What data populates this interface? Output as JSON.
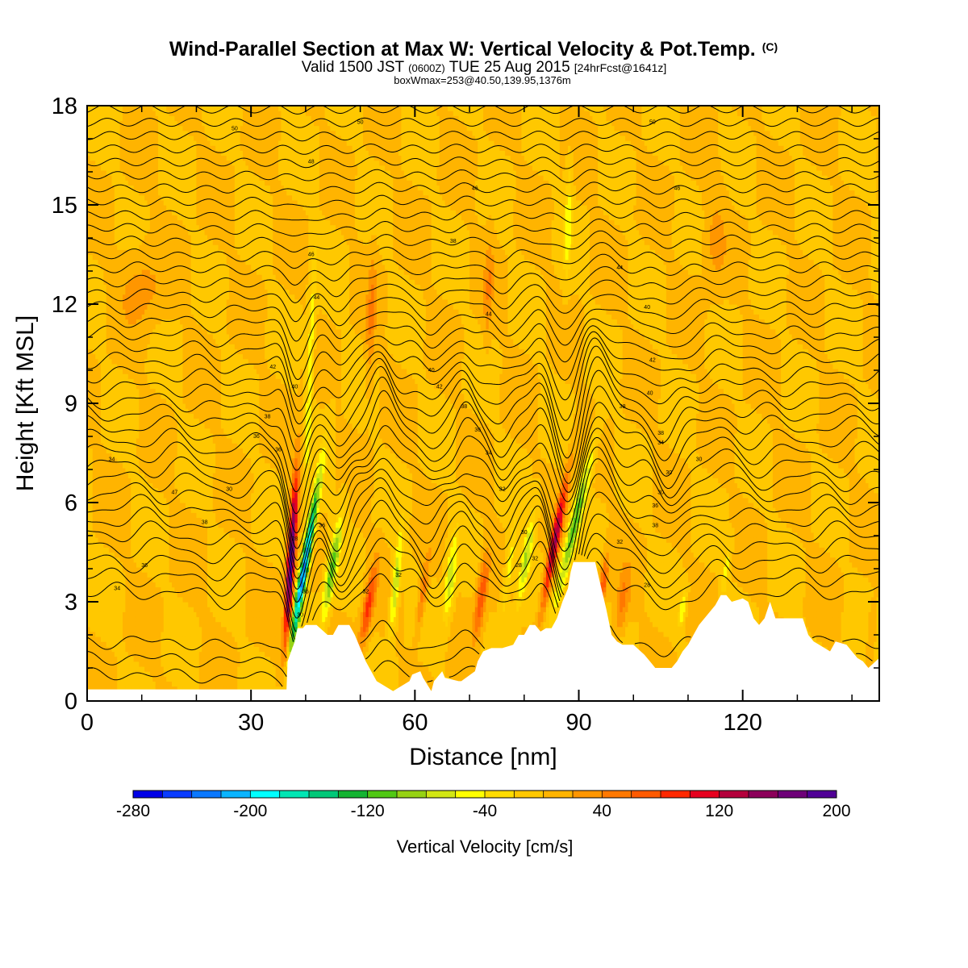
{
  "chart_data": {
    "type": "heatmap",
    "title": "Wind-Parallel Section at Max W: Vertical Velocity & Pot.Temp.",
    "title_mark": "(C)",
    "subtitle": {
      "part1": "Valid 1500 JST",
      "part2": "(0600Z)",
      "part3": "TUE 25 Aug 2015",
      "part4": "[24hrFcst@1641z]"
    },
    "subtitle2": "boxWmax=253@40.50,139.95,1376m",
    "xlabel": "Distance [nm]",
    "ylabel": "Height [Kft MSL]",
    "xlim": [
      0,
      145
    ],
    "ylim": [
      0,
      18
    ],
    "xticks": [
      0,
      30,
      60,
      90,
      120
    ],
    "yticks": [
      0,
      3,
      6,
      9,
      12,
      15,
      18
    ],
    "colorbar": {
      "label": "Vertical Velocity [cm/s]",
      "tick_labels": [
        "-280",
        "-200",
        "-120",
        "-40",
        "40",
        "120",
        "200"
      ],
      "tick_values": [
        -280,
        -200,
        -120,
        -40,
        40,
        120,
        200
      ],
      "range": [
        -280,
        200
      ],
      "colors": [
        "#0000e6",
        "#0a3cff",
        "#0a78ff",
        "#0ab4ff",
        "#00ffff",
        "#00e6b4",
        "#00c878",
        "#14b432",
        "#50c814",
        "#96d214",
        "#d2e614",
        "#ffff00",
        "#ffdc00",
        "#ffc800",
        "#ffb400",
        "#ff9600",
        "#ff7800",
        "#ff5a00",
        "#ff2800",
        "#e6001e",
        "#b4003c",
        "#8c005a",
        "#6e0078",
        "#500096"
      ]
    },
    "terrain": {
      "x": [
        0,
        36.5,
        36.7,
        38,
        38.5,
        39.5,
        40,
        42,
        44,
        45,
        46,
        48,
        49,
        50,
        51,
        52,
        53,
        54,
        55,
        56,
        57,
        59,
        59.5,
        61,
        61.5,
        63,
        63.5,
        65,
        65.5,
        68,
        68.5,
        71,
        71.5,
        72.5,
        74,
        75,
        76,
        78,
        79,
        80,
        81,
        82,
        83,
        84,
        85,
        86,
        87,
        88,
        88.5,
        89,
        90,
        92,
        93,
        94,
        95,
        96,
        97,
        98,
        100,
        102,
        103,
        104,
        107,
        108,
        109,
        110,
        111,
        112,
        113,
        114,
        115,
        116,
        117,
        118,
        120,
        121,
        122,
        123,
        124,
        125,
        126,
        127,
        128,
        131,
        132,
        133,
        134,
        135,
        136,
        137,
        139,
        140,
        141,
        142,
        143,
        145
      ],
      "h": [
        0.35,
        0.35,
        1.2,
        1.8,
        2.2,
        2.2,
        2.3,
        2.3,
        2.0,
        2.0,
        2.3,
        2.3,
        2.0,
        1.6,
        1.2,
        0.9,
        0.6,
        0.5,
        0.4,
        0.3,
        0.4,
        0.6,
        0.8,
        0.9,
        0.7,
        0.3,
        0.6,
        0.9,
        0.7,
        0.6,
        0.6,
        0.9,
        1.2,
        1.5,
        1.6,
        1.6,
        1.6,
        1.7,
        2.0,
        2.0,
        2.3,
        2.3,
        2.1,
        2.2,
        2.2,
        2.5,
        3.0,
        3.4,
        3.9,
        4.2,
        4.2,
        4.2,
        4.2,
        3.5,
        2.8,
        2.0,
        1.8,
        1.7,
        1.7,
        1.4,
        1.2,
        1.0,
        1.0,
        1.2,
        1.5,
        1.7,
        2.0,
        2.3,
        2.5,
        2.7,
        2.9,
        3.2,
        3.2,
        3.0,
        3.1,
        3.0,
        2.5,
        2.3,
        2.5,
        3.0,
        2.5,
        2.5,
        2.5,
        2.5,
        2.0,
        1.8,
        1.7,
        1.6,
        1.5,
        1.8,
        1.7,
        1.5,
        1.3,
        1.2,
        1.0,
        1.3
      ]
    },
    "w_features": [
      {
        "x": 37.3,
        "z": 4.2,
        "sx": 0.7,
        "sz": 2.6,
        "tilt": 0.09,
        "w": 200
      },
      {
        "x": 39.7,
        "z": 4.0,
        "sx": 0.8,
        "sz": 2.6,
        "tilt": 0.25,
        "w": -230
      },
      {
        "x": 44.8,
        "z": 4.0,
        "sx": 0.9,
        "sz": 1.6,
        "tilt": 0.25,
        "w": -110
      },
      {
        "x": 51.5,
        "z": 2.9,
        "sx": 0.9,
        "sz": 1.2,
        "tilt": 0.25,
        "w": 90
      },
      {
        "x": 56.5,
        "z": 3.6,
        "sx": 0.7,
        "sz": 1.5,
        "tilt": 0.15,
        "w": -90
      },
      {
        "x": 61.5,
        "z": 3.3,
        "sx": 0.7,
        "sz": 1.1,
        "tilt": 0.2,
        "w": 55
      },
      {
        "x": 66.5,
        "z": 3.7,
        "sx": 0.9,
        "sz": 1.3,
        "tilt": 0.15,
        "w": -80
      },
      {
        "x": 72.2,
        "z": 3.2,
        "sx": 0.9,
        "sz": 1.2,
        "tilt": 0.2,
        "w": 80
      },
      {
        "x": 77.2,
        "z": 4.0,
        "sx": 0.8,
        "sz": 1.4,
        "tilt": 0.2,
        "w": -55
      },
      {
        "x": 80.3,
        "z": 4.3,
        "sx": 0.9,
        "sz": 1.4,
        "tilt": 0.25,
        "w": -85
      },
      {
        "x": 85.6,
        "z": 4.8,
        "sx": 0.8,
        "sz": 2.0,
        "tilt": 0.28,
        "w": 140
      },
      {
        "x": 89.3,
        "z": 5.4,
        "sx": 1.0,
        "sz": 2.4,
        "tilt": 0.35,
        "w": -110
      },
      {
        "x": 94.5,
        "z": 3.6,
        "sx": 0.7,
        "sz": 0.8,
        "tilt": 0.2,
        "w": 75
      },
      {
        "x": 98.0,
        "z": 3.0,
        "sx": 1.2,
        "sz": 1.0,
        "tilt": 0.2,
        "w": 45
      },
      {
        "x": 109.0,
        "z": 2.8,
        "sx": 0.6,
        "sz": 0.6,
        "tilt": 0.2,
        "w": -60
      },
      {
        "x": 117.0,
        "z": 4.0,
        "sx": 0.6,
        "sz": 0.8,
        "tilt": 0.2,
        "w": -45
      },
      {
        "x": 143.5,
        "z": 2.0,
        "sx": 0.6,
        "sz": 0.8,
        "tilt": 0.1,
        "w": 30
      },
      {
        "x": 40.8,
        "z": 10.0,
        "sx": 0.6,
        "sz": 3.5,
        "tilt": 0.05,
        "w": -60
      },
      {
        "x": 52.0,
        "z": 11.5,
        "sx": 0.8,
        "sz": 2.0,
        "tilt": 0.05,
        "w": 40
      },
      {
        "x": 88.0,
        "z": 14.5,
        "sx": 0.7,
        "sz": 1.8,
        "tilt": 0.05,
        "w": -50
      },
      {
        "x": 73.5,
        "z": 12.5,
        "sx": 0.8,
        "sz": 1.6,
        "tilt": 0.05,
        "w": 35
      },
      {
        "x": 10.0,
        "z": 12.5,
        "sx": 4.0,
        "sz": 1.2,
        "tilt": 0.0,
        "w": 28
      },
      {
        "x": 115.0,
        "z": 14.0,
        "sx": 2.0,
        "sz": 1.5,
        "tilt": 0.0,
        "w": 25
      }
    ],
    "isentropes": {
      "base_heights": [
        3.3,
        3.75,
        4.2,
        4.65,
        5.1,
        5.5,
        5.9,
        6.3,
        6.7,
        7.1,
        7.5,
        7.9,
        8.3,
        8.7,
        9.1,
        9.5,
        9.9,
        10.3,
        10.7,
        11.1,
        11.5,
        11.9,
        12.3,
        12.7,
        13.1,
        13.5,
        13.9,
        14.3,
        14.7,
        15.1,
        15.5,
        15.9,
        16.3,
        16.7,
        17.1,
        17.5,
        17.9
      ],
      "low_heights": [
        0.8,
        1.3,
        1.8
      ],
      "contour_labels": [
        {
          "text": "34",
          "x": 5.5,
          "z": 3.4
        },
        {
          "text": "36",
          "x": 10.5,
          "z": 4.1
        },
        {
          "text": "38",
          "x": 21.5,
          "z": 5.4
        },
        {
          "text": "47",
          "x": 16.0,
          "z": 6.3
        },
        {
          "text": "30",
          "x": 26.0,
          "z": 6.4
        },
        {
          "text": "34",
          "x": 4.5,
          "z": 7.3
        },
        {
          "text": "36",
          "x": 31.0,
          "z": 8.0
        },
        {
          "text": "38",
          "x": 33.0,
          "z": 8.6
        },
        {
          "text": "36",
          "x": 35.0,
          "z": 7.6
        },
        {
          "text": "40",
          "x": 38.0,
          "z": 9.5
        },
        {
          "text": "42",
          "x": 34.0,
          "z": 10.1
        },
        {
          "text": "44",
          "x": 42.0,
          "z": 12.2
        },
        {
          "text": "46",
          "x": 41.0,
          "z": 13.5
        },
        {
          "text": "48",
          "x": 41.0,
          "z": 16.3
        },
        {
          "text": "50",
          "x": 27.0,
          "z": 17.3
        },
        {
          "text": "50",
          "x": 50.0,
          "z": 17.5
        },
        {
          "text": "46",
          "x": 71.0,
          "z": 15.5
        },
        {
          "text": "38",
          "x": 67.0,
          "z": 13.9
        },
        {
          "text": "44",
          "x": 73.5,
          "z": 11.7
        },
        {
          "text": "40",
          "x": 63.0,
          "z": 10.0
        },
        {
          "text": "42",
          "x": 64.5,
          "z": 9.5
        },
        {
          "text": "38",
          "x": 69.0,
          "z": 8.9
        },
        {
          "text": "36",
          "x": 71.5,
          "z": 8.2
        },
        {
          "text": "34",
          "x": 73.5,
          "z": 7.5
        },
        {
          "text": "32",
          "x": 76.0,
          "z": 6.4
        },
        {
          "text": "30",
          "x": 80.0,
          "z": 5.1
        },
        {
          "text": "32",
          "x": 82.0,
          "z": 4.3
        },
        {
          "text": "28",
          "x": 79.0,
          "z": 4.1
        },
        {
          "text": "32",
          "x": 57.0,
          "z": 3.8
        },
        {
          "text": "32",
          "x": 51.0,
          "z": 3.3
        },
        {
          "text": "36",
          "x": 43.0,
          "z": 5.3
        },
        {
          "text": "28",
          "x": 38.0,
          "z": 4.9
        },
        {
          "text": "36",
          "x": 40.0,
          "z": 3.3
        },
        {
          "text": "30",
          "x": 39.0,
          "z": 2.6
        },
        {
          "text": "46",
          "x": 108.0,
          "z": 15.5
        },
        {
          "text": "44",
          "x": 97.5,
          "z": 13.1
        },
        {
          "text": "40",
          "x": 102.5,
          "z": 11.9
        },
        {
          "text": "42",
          "x": 103.5,
          "z": 10.3
        },
        {
          "text": "50",
          "x": 103.5,
          "z": 17.5
        },
        {
          "text": "38",
          "x": 98.0,
          "z": 8.9
        },
        {
          "text": "40",
          "x": 103.0,
          "z": 9.3
        },
        {
          "text": "38",
          "x": 105.0,
          "z": 8.1
        },
        {
          "text": "34",
          "x": 105.0,
          "z": 7.8
        },
        {
          "text": "30",
          "x": 106.5,
          "z": 6.9
        },
        {
          "text": "30",
          "x": 105.0,
          "z": 6.3
        },
        {
          "text": "36",
          "x": 104.0,
          "z": 5.9
        },
        {
          "text": "38",
          "x": 104.0,
          "z": 5.3
        },
        {
          "text": "32",
          "x": 97.5,
          "z": 4.8
        },
        {
          "text": "28",
          "x": 102.5,
          "z": 3.5
        },
        {
          "text": "30",
          "x": 112.0,
          "z": 7.3
        }
      ]
    }
  }
}
